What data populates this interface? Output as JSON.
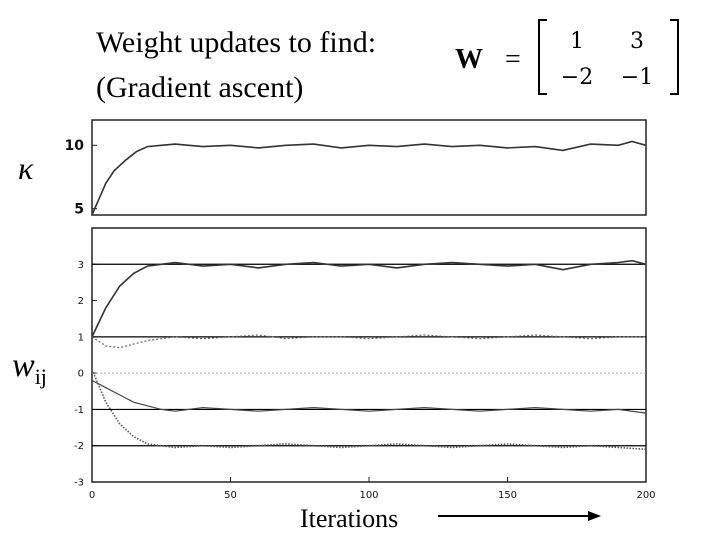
{
  "title": {
    "line1": "Weight updates to find:",
    "line2": "(Gradient ascent)",
    "matrix_symbol": "W",
    "equals": "=",
    "matrix": [
      [
        "1",
        "3"
      ],
      [
        "−2",
        "−1"
      ]
    ]
  },
  "labels": {
    "kappa": "κ",
    "w": "w",
    "w_sub": "ij",
    "xlabel": "Iterations"
  },
  "chart_data": [
    {
      "type": "line",
      "title": "",
      "xlabel": "",
      "ylabel": "κ",
      "xlim": [
        0,
        200
      ],
      "ylim": [
        4.5,
        12
      ],
      "yticks": [
        5,
        10
      ],
      "series": [
        {
          "points": [
            [
              0,
              4.5
            ],
            [
              2,
              5.5
            ],
            [
              5,
              7
            ],
            [
              8,
              8
            ],
            [
              12,
              8.8
            ],
            [
              16,
              9.5
            ],
            [
              20,
              9.9
            ],
            [
              25,
              10
            ],
            [
              30,
              10.1
            ],
            [
              40,
              9.9
            ],
            [
              50,
              10
            ],
            [
              60,
              9.8
            ],
            [
              70,
              10
            ],
            [
              80,
              10.1
            ],
            [
              90,
              9.8
            ],
            [
              100,
              10
            ],
            [
              110,
              9.9
            ],
            [
              120,
              10.1
            ],
            [
              130,
              9.9
            ],
            [
              140,
              10
            ],
            [
              150,
              9.8
            ],
            [
              160,
              9.9
            ],
            [
              170,
              9.6
            ],
            [
              180,
              10.1
            ],
            [
              190,
              10
            ],
            [
              195,
              10.3
            ],
            [
              200,
              10
            ]
          ]
        }
      ]
    },
    {
      "type": "line",
      "title": "",
      "xlabel": "Iterations",
      "ylabel": "wij",
      "xlim": [
        0,
        200
      ],
      "ylim": [
        -3,
        4
      ],
      "xticks": [
        0,
        50,
        100,
        150,
        200
      ],
      "yticks": [
        -3,
        -2,
        -1,
        0,
        1,
        2,
        3
      ],
      "reference_lines": [
        3,
        1,
        -1,
        -2
      ],
      "series": [
        {
          "points": [
            [
              0,
              1
            ],
            [
              5,
              1.8
            ],
            [
              10,
              2.4
            ],
            [
              15,
              2.75
            ],
            [
              20,
              2.95
            ],
            [
              25,
              3
            ],
            [
              30,
              3.05
            ],
            [
              40,
              2.95
            ],
            [
              50,
              3
            ],
            [
              60,
              2.9
            ],
            [
              70,
              3
            ],
            [
              80,
              3.05
            ],
            [
              90,
              2.95
            ],
            [
              100,
              3
            ],
            [
              110,
              2.9
            ],
            [
              120,
              3
            ],
            [
              130,
              3.05
            ],
            [
              140,
              3
            ],
            [
              150,
              2.95
            ],
            [
              160,
              3
            ],
            [
              170,
              2.85
            ],
            [
              180,
              3
            ],
            [
              190,
              3.05
            ],
            [
              195,
              3.1
            ],
            [
              200,
              3
            ]
          ]
        },
        {
          "points": [
            [
              0,
              1
            ],
            [
              5,
              0.75
            ],
            [
              10,
              0.7
            ],
            [
              15,
              0.8
            ],
            [
              20,
              0.9
            ],
            [
              30,
              1
            ],
            [
              40,
              0.95
            ],
            [
              50,
              1
            ],
            [
              60,
              1.05
            ],
            [
              70,
              0.95
            ],
            [
              80,
              1
            ],
            [
              90,
              1
            ],
            [
              100,
              0.95
            ],
            [
              110,
              1
            ],
            [
              120,
              1.05
            ],
            [
              130,
              1
            ],
            [
              140,
              0.95
            ],
            [
              150,
              1
            ],
            [
              160,
              1.05
            ],
            [
              170,
              1
            ],
            [
              180,
              0.95
            ],
            [
              190,
              1
            ],
            [
              200,
              1
            ]
          ]
        },
        {
          "points": [
            [
              0,
              -0.2
            ],
            [
              5,
              -0.4
            ],
            [
              10,
              -0.6
            ],
            [
              15,
              -0.8
            ],
            [
              20,
              -0.9
            ],
            [
              25,
              -1
            ],
            [
              30,
              -1.05
            ],
            [
              40,
              -0.95
            ],
            [
              50,
              -1
            ],
            [
              60,
              -1.05
            ],
            [
              70,
              -1
            ],
            [
              80,
              -0.95
            ],
            [
              90,
              -1
            ],
            [
              100,
              -1.05
            ],
            [
              110,
              -1
            ],
            [
              120,
              -0.95
            ],
            [
              130,
              -1
            ],
            [
              140,
              -1.05
            ],
            [
              150,
              -1
            ],
            [
              160,
              -0.95
            ],
            [
              170,
              -1
            ],
            [
              180,
              -1.05
            ],
            [
              190,
              -1
            ],
            [
              200,
              -1.1
            ]
          ]
        },
        {
          "points": [
            [
              0,
              0.1
            ],
            [
              5,
              -0.8
            ],
            [
              10,
              -1.4
            ],
            [
              15,
              -1.75
            ],
            [
              20,
              -1.95
            ],
            [
              25,
              -2
            ],
            [
              30,
              -2.05
            ],
            [
              40,
              -2
            ],
            [
              50,
              -2.05
            ],
            [
              60,
              -2
            ],
            [
              70,
              -1.95
            ],
            [
              80,
              -2
            ],
            [
              90,
              -2.05
            ],
            [
              100,
              -2
            ],
            [
              110,
              -1.95
            ],
            [
              120,
              -2
            ],
            [
              130,
              -2.05
            ],
            [
              140,
              -2
            ],
            [
              150,
              -1.95
            ],
            [
              160,
              -2
            ],
            [
              170,
              -2.05
            ],
            [
              180,
              -2
            ],
            [
              190,
              -2.05
            ],
            [
              200,
              -2.1
            ]
          ]
        }
      ]
    }
  ]
}
